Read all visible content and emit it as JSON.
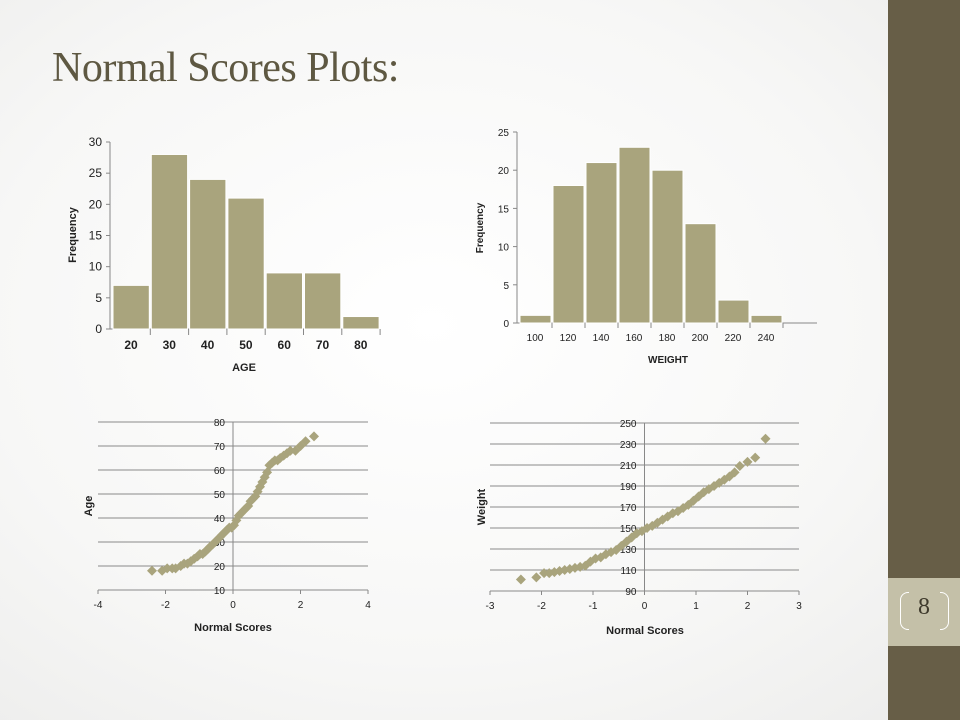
{
  "slide": {
    "title": "Normal Scores Plots:",
    "page_number": "8"
  },
  "colors": {
    "accent": "#a9a47d",
    "sidebar": "#675e47",
    "title": "#5e5842",
    "band": "#c4c0a8"
  },
  "chart_data": [
    {
      "type": "bar",
      "categories": [
        "20",
        "30",
        "40",
        "50",
        "60",
        "70",
        "80"
      ],
      "values": [
        7,
        28,
        24,
        21,
        9,
        9,
        2
      ],
      "xlabel": "AGE",
      "ylabel": "Frequency",
      "ylim": [
        0,
        30
      ],
      "yticks": [
        0,
        5,
        10,
        15,
        20,
        25,
        30
      ],
      "grid": false
    },
    {
      "type": "bar",
      "categories": [
        "100",
        "120",
        "140",
        "160",
        "180",
        "200",
        "220",
        "240"
      ],
      "values": [
        1,
        18,
        21,
        23,
        20,
        13,
        3,
        1
      ],
      "xlabel": "WEIGHT",
      "ylabel": "Frequency",
      "ylim": [
        0,
        25
      ],
      "yticks": [
        0,
        5,
        10,
        15,
        20,
        25
      ],
      "grid": false
    },
    {
      "type": "scatter",
      "xlabel": "Normal Scores",
      "ylabel": "Age",
      "xlim": [
        -4,
        4
      ],
      "xticks": [
        -4,
        -2,
        0,
        2,
        4
      ],
      "ylim": [
        10,
        80
      ],
      "yticks": [
        10,
        20,
        30,
        40,
        50,
        60,
        70,
        80
      ],
      "grid": true,
      "x": [
        -2.4,
        -2.1,
        -1.95,
        -1.8,
        -1.7,
        -1.55,
        -1.45,
        -1.35,
        -1.25,
        -1.15,
        -1.05,
        -0.98,
        -0.9,
        -0.82,
        -0.75,
        -0.68,
        -0.6,
        -0.53,
        -0.46,
        -0.39,
        -0.32,
        -0.25,
        -0.18,
        -0.11,
        -0.04,
        0.03,
        0.1,
        0.17,
        0.24,
        0.31,
        0.38,
        0.45,
        0.52,
        0.59,
        0.66,
        0.73,
        0.8,
        0.87,
        0.94,
        1.01,
        1.08,
        1.16,
        1.24,
        1.32,
        1.4,
        1.5,
        1.6,
        1.7,
        1.85,
        2.0,
        2.15,
        2.4
      ],
      "y": [
        18,
        18,
        19,
        19,
        19,
        20,
        21,
        21,
        22,
        23,
        24,
        25,
        25,
        26,
        27,
        28,
        29,
        30,
        31,
        32,
        33,
        34,
        35,
        36,
        36,
        37,
        39,
        41,
        42,
        43,
        44,
        45,
        47,
        48,
        49,
        51,
        53,
        55,
        57,
        59,
        62,
        63,
        64,
        64,
        65,
        66,
        67,
        68,
        68,
        70,
        72,
        74
      ]
    },
    {
      "type": "scatter",
      "xlabel": "Normal Scores",
      "ylabel": "Weight",
      "xlim": [
        -3,
        3
      ],
      "xticks": [
        -3,
        -2,
        -1,
        0,
        1,
        2,
        3
      ],
      "ylim": [
        90,
        250
      ],
      "yticks": [
        90,
        110,
        130,
        150,
        170,
        190,
        210,
        230,
        250
      ],
      "grid": true,
      "x": [
        -2.4,
        -2.1,
        -1.95,
        -1.85,
        -1.75,
        -1.65,
        -1.55,
        -1.45,
        -1.35,
        -1.25,
        -1.15,
        -1.05,
        -0.95,
        -0.85,
        -0.75,
        -0.65,
        -0.55,
        -0.45,
        -0.35,
        -0.25,
        -0.15,
        -0.05,
        0.05,
        0.15,
        0.25,
        0.35,
        0.45,
        0.55,
        0.65,
        0.75,
        0.85,
        0.95,
        1.05,
        1.15,
        1.25,
        1.35,
        1.45,
        1.55,
        1.65,
        1.75,
        1.85,
        2.0,
        2.15,
        2.35
      ],
      "y": [
        101,
        103,
        107,
        107,
        108,
        109,
        110,
        111,
        112,
        113,
        114,
        118,
        121,
        122,
        125,
        127,
        129,
        133,
        137,
        141,
        145,
        147,
        150,
        152,
        155,
        158,
        161,
        164,
        166,
        169,
        172,
        176,
        180,
        184,
        187,
        190,
        193,
        196,
        199,
        203,
        209,
        213,
        217,
        235
      ]
    }
  ]
}
